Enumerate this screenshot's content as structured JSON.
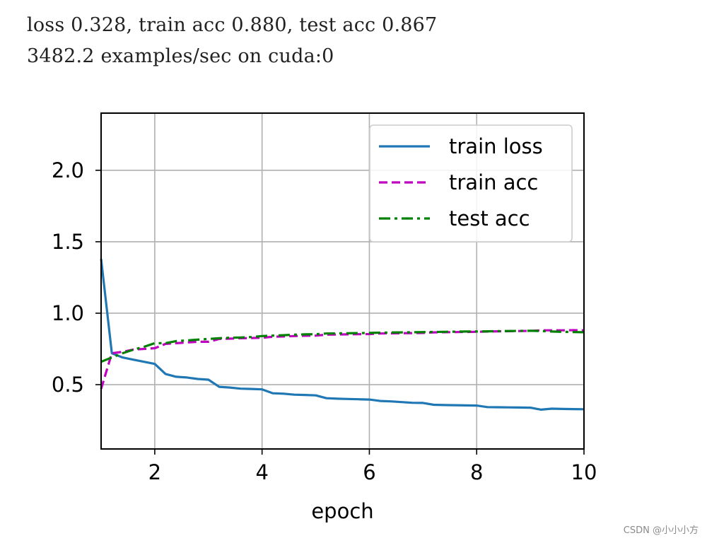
{
  "console": {
    "line1": "loss 0.328, train acc 0.880, test acc 0.867",
    "line2": "3482.2 examples/sec on cuda:0"
  },
  "watermark": "CSDN @小小小方",
  "chart_data": {
    "type": "line",
    "title": "",
    "xlabel": "epoch",
    "ylabel": "",
    "xlim": [
      1,
      10
    ],
    "ylim": [
      0.05,
      2.4
    ],
    "xticks": [
      2,
      4,
      6,
      8,
      10
    ],
    "yticks": [
      0.5,
      1.0,
      1.5,
      2.0
    ],
    "xtick_labels": [
      "2",
      "4",
      "6",
      "8",
      "10"
    ],
    "ytick_labels": [
      "0.5",
      "1.0",
      "1.5",
      "2.0"
    ],
    "grid": true,
    "legend_position": "top-right",
    "x": [
      1.0,
      1.2,
      1.4,
      1.6,
      1.8,
      2.0,
      2.2,
      2.4,
      2.6,
      2.8,
      3.0,
      3.2,
      3.4,
      3.6,
      3.8,
      4.0,
      4.2,
      4.4,
      4.6,
      4.8,
      5.0,
      5.2,
      5.4,
      5.6,
      5.8,
      6.0,
      6.2,
      6.4,
      6.6,
      6.8,
      7.0,
      7.2,
      7.4,
      7.6,
      7.8,
      8.0,
      8.2,
      8.4,
      8.6,
      8.8,
      9.0,
      9.2,
      9.4,
      9.6,
      9.8,
      10.0
    ],
    "series": [
      {
        "name": "train loss",
        "color": "#1f77b4",
        "dash": "solid",
        "values": [
          1.38,
          0.72,
          0.69,
          0.675,
          0.66,
          0.645,
          0.575,
          0.555,
          0.55,
          0.54,
          0.535,
          0.485,
          0.48,
          0.472,
          0.47,
          0.467,
          0.44,
          0.437,
          0.43,
          0.428,
          0.425,
          0.405,
          0.402,
          0.4,
          0.398,
          0.396,
          0.386,
          0.383,
          0.378,
          0.373,
          0.372,
          0.359,
          0.357,
          0.356,
          0.355,
          0.354,
          0.343,
          0.342,
          0.341,
          0.34,
          0.339,
          0.325,
          0.332,
          0.33,
          0.329,
          0.328
        ]
      },
      {
        "name": "train acc",
        "color": "#bf00bf",
        "dash": "dashed",
        "values": [
          0.47,
          0.72,
          0.73,
          0.745,
          0.75,
          0.755,
          0.785,
          0.79,
          0.795,
          0.8,
          0.8,
          0.82,
          0.822,
          0.825,
          0.826,
          0.828,
          0.835,
          0.837,
          0.84,
          0.842,
          0.843,
          0.85,
          0.851,
          0.852,
          0.853,
          0.854,
          0.858,
          0.859,
          0.86,
          0.861,
          0.862,
          0.866,
          0.867,
          0.868,
          0.869,
          0.87,
          0.872,
          0.873,
          0.874,
          0.875,
          0.876,
          0.88,
          0.88,
          0.88,
          0.881,
          0.88
        ]
      },
      {
        "name": "test acc",
        "color": "#008000",
        "dash": "dashdot",
        "values": [
          0.66,
          0.69,
          0.72,
          0.745,
          0.765,
          0.79,
          0.79,
          0.805,
          0.81,
          0.815,
          0.82,
          0.825,
          0.828,
          0.83,
          0.833,
          0.84,
          0.843,
          0.846,
          0.85,
          0.852,
          0.853,
          0.858,
          0.859,
          0.86,
          0.861,
          0.862,
          0.864,
          0.865,
          0.866,
          0.867,
          0.868,
          0.869,
          0.87,
          0.871,
          0.872,
          0.872,
          0.873,
          0.874,
          0.875,
          0.876,
          0.877,
          0.875,
          0.872,
          0.87,
          0.868,
          0.867
        ]
      }
    ]
  }
}
